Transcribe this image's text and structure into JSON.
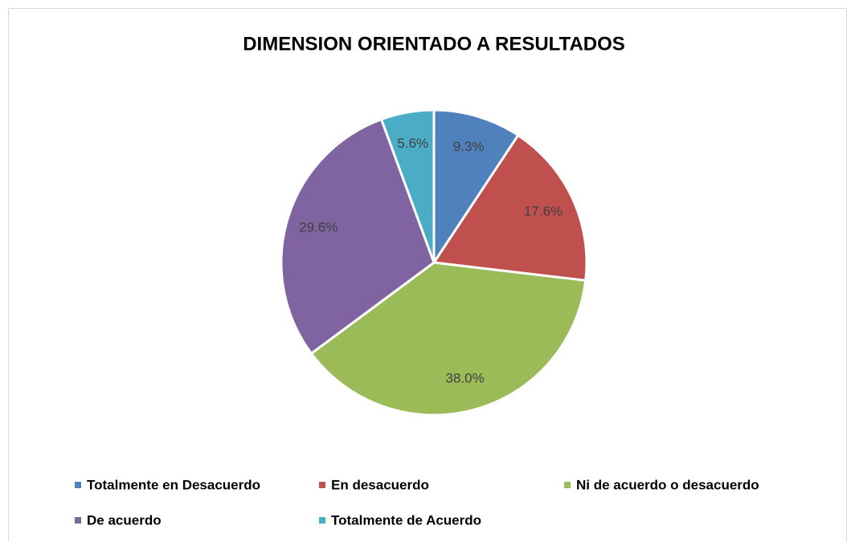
{
  "chart_data": {
    "type": "pie",
    "title": "DIMENSION ORIENTADO A RESULTADOS",
    "categories": [
      "Totalmente en Desacuerdo",
      "En desacuerdo",
      "Ni de acuerdo o desacuerdo",
      "De acuerdo",
      "Totalmente de Acuerdo"
    ],
    "values": [
      9.3,
      17.6,
      38.0,
      29.6,
      5.6
    ],
    "value_labels": [
      "9.3%",
      "17.6%",
      "38.0%",
      "29.6%",
      "5.6%"
    ],
    "colors": [
      "#4f81bd",
      "#c0504d",
      "#9bbb59",
      "#8064a2",
      "#4bacc6"
    ],
    "legend": "bottom"
  }
}
